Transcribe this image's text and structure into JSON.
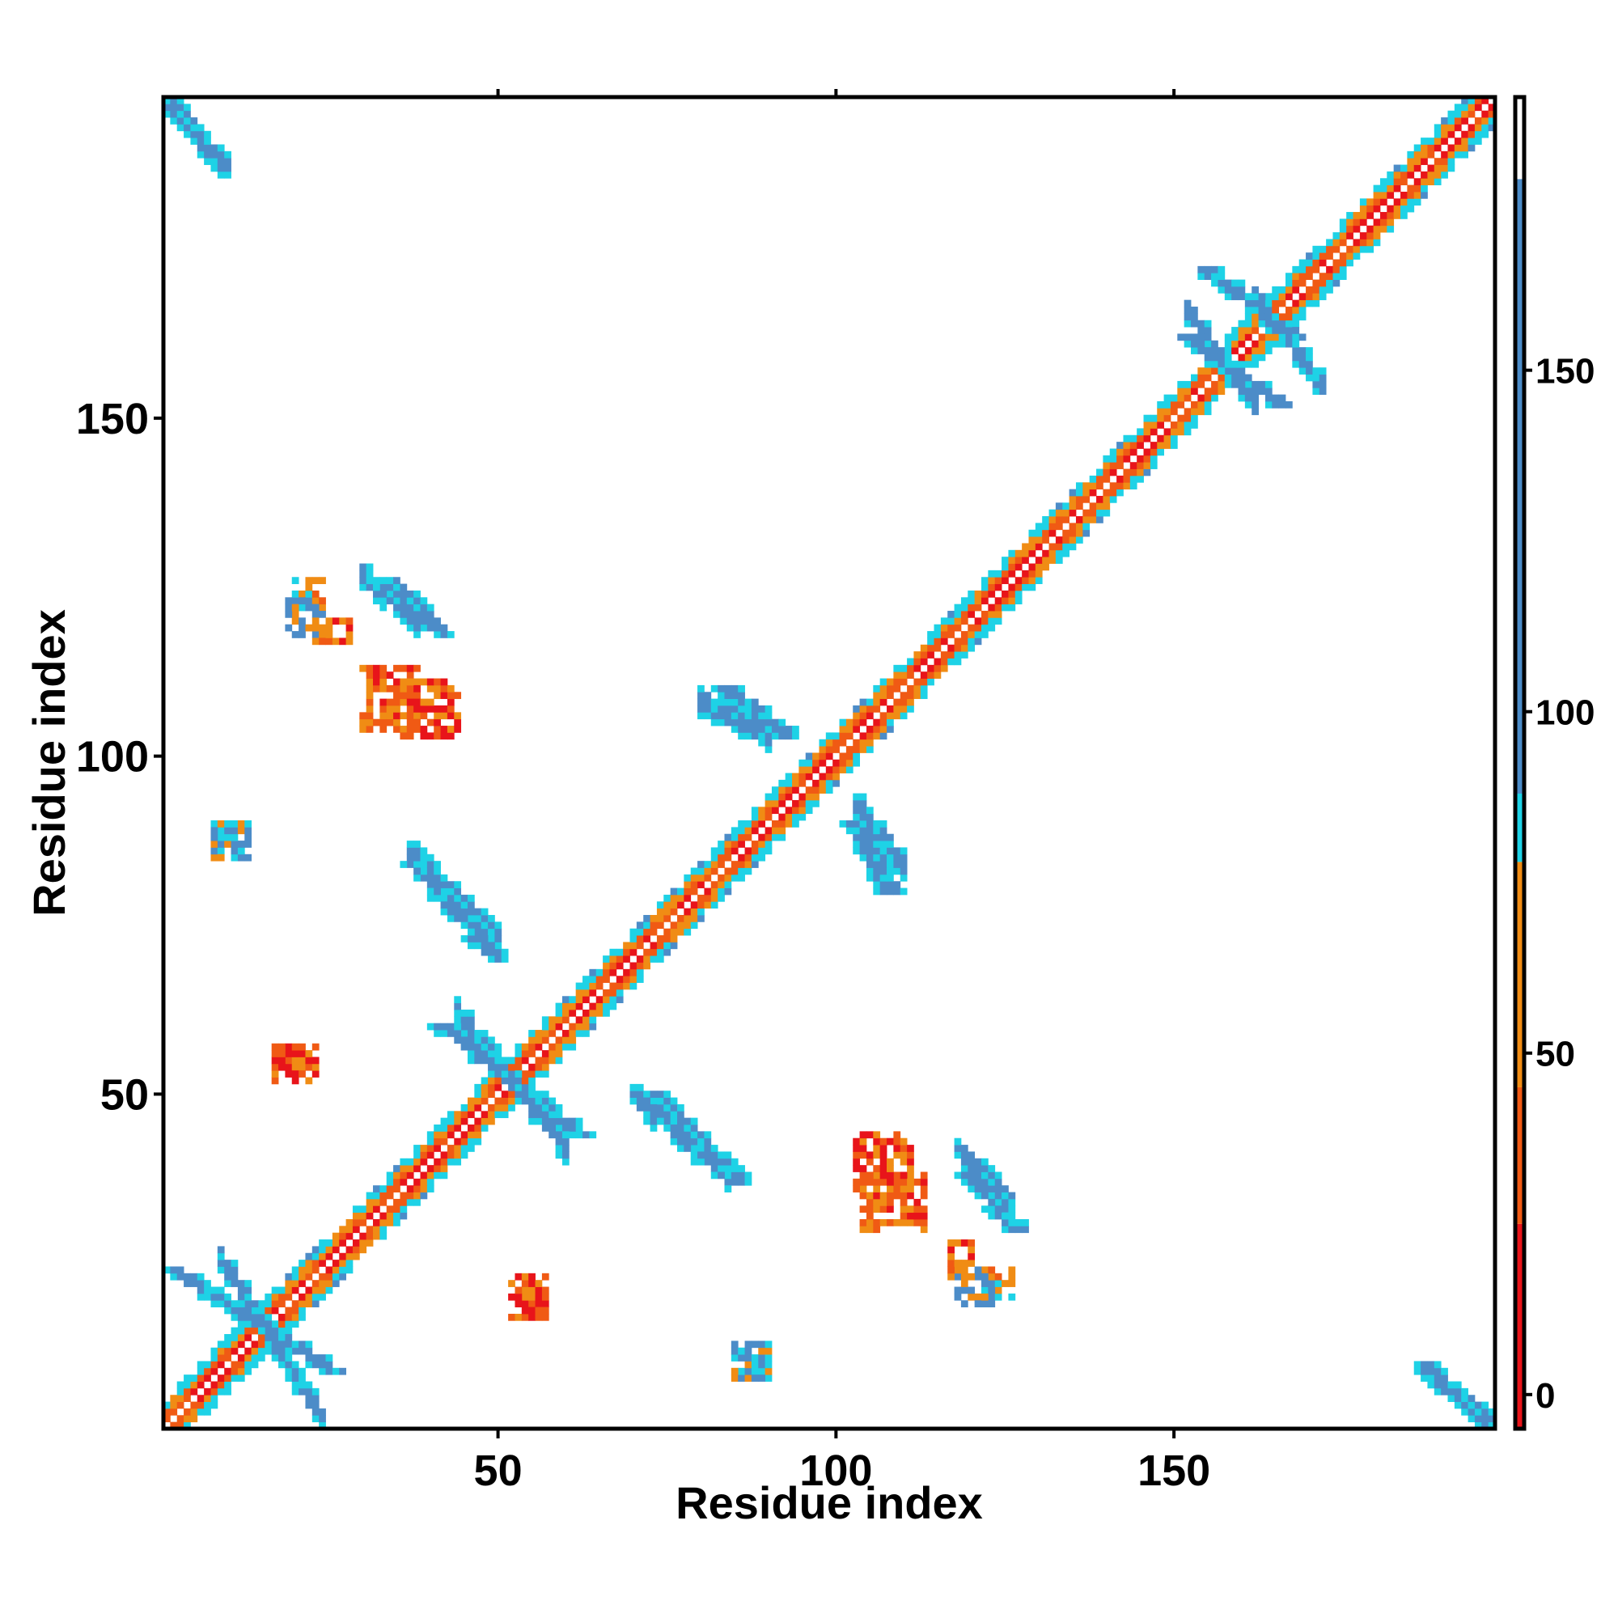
{
  "chart_data": {
    "type": "heatmap",
    "title": "",
    "xlabel": "Residue index",
    "ylabel": "Residue index",
    "xlim": [
      1,
      197
    ],
    "ylim": [
      1,
      197
    ],
    "x_ticks": [
      {
        "value": 50,
        "label": "50"
      },
      {
        "value": 100,
        "label": "100"
      },
      {
        "value": 150,
        "label": "150"
      }
    ],
    "y_ticks": [
      {
        "value": 50,
        "label": "50"
      },
      {
        "value": 100,
        "label": "100"
      },
      {
        "value": 150,
        "label": "150"
      }
    ],
    "colorbar": {
      "range": [
        -5,
        190
      ],
      "ticks": [
        {
          "value": 0,
          "label": "0"
        },
        {
          "value": 50,
          "label": "50"
        },
        {
          "value": 100,
          "label": "100"
        },
        {
          "value": 150,
          "label": "150"
        }
      ],
      "bins": [
        {
          "from": -5,
          "to": 25,
          "color": "#e8141a"
        },
        {
          "from": 25,
          "to": 45,
          "color": "#f05a14"
        },
        {
          "from": 45,
          "to": 78,
          "color": "#f08c14"
        },
        {
          "from": 78,
          "to": 88,
          "color": "#1ed2e6"
        },
        {
          "from": 88,
          "to": 178,
          "color": "#4c8cc8"
        },
        {
          "from": 178,
          "to": 190,
          "color": "#ffffff"
        }
      ]
    },
    "symmetric": true,
    "diagonal": {
      "start": 1,
      "end": 197
    },
    "regions": [
      {
        "i": [
          1,
          10
        ],
        "j": [
          187,
          197
        ],
        "kind": "antiparallel",
        "value": 120
      },
      {
        "i": [
          9,
          24
        ],
        "j": [
          2,
          26
        ],
        "kind": "antiparallel",
        "value": 110
      },
      {
        "i": [
          44,
          60
        ],
        "j": [
          42,
          62
        ],
        "kind": "antiparallel",
        "value": 110
      },
      {
        "i": [
          37,
          50
        ],
        "j": [
          73,
          86
        ],
        "kind": "antiparallel",
        "value": 115
      },
      {
        "i": [
          70,
          84
        ],
        "j": [
          38,
          50
        ],
        "kind": "antiparallel",
        "value": 115
      },
      {
        "i": [
          80,
          90
        ],
        "j": [
          103,
          108
        ],
        "kind": "antiparallel",
        "value": 115
      },
      {
        "i": [
          103,
          110
        ],
        "j": [
          84,
          93
        ],
        "kind": "antiparallel",
        "value": 115
      },
      {
        "i": [
          118,
          126
        ],
        "j": [
          34,
          42
        ],
        "kind": "antiparallel",
        "value": 115
      },
      {
        "i": [
          30,
          38
        ],
        "j": [
          120,
          127
        ],
        "kind": "antiparallel",
        "value": 115
      },
      {
        "i": [
          162,
          172
        ],
        "j": [
          155,
          168
        ],
        "kind": "antiparallel",
        "value": 115
      },
      {
        "i": [
          152,
          162
        ],
        "j": [
          152,
          166
        ],
        "kind": "antiparallel",
        "value": 115
      },
      {
        "i": [
          30,
          38
        ],
        "j": [
          104,
          113
        ],
        "kind": "patch",
        "value": 35
      },
      {
        "i": [
          103,
          111
        ],
        "j": [
          36,
          44
        ],
        "kind": "patch",
        "value": 35
      },
      {
        "i": [
          19,
          23
        ],
        "j": [
          52,
          57
        ],
        "kind": "patch",
        "value": 40
      },
      {
        "i": [
          52,
          57
        ],
        "j": [
          17,
          22
        ],
        "kind": "patch",
        "value": 40
      },
      {
        "i": [
          20,
          24
        ],
        "j": [
          121,
          126
        ],
        "kind": "patch",
        "value": 65
      },
      {
        "i": [
          118,
          123
        ],
        "j": [
          19,
          24
        ],
        "kind": "patch",
        "value": 95
      },
      {
        "i": [
          85,
          90
        ],
        "j": [
          8,
          12
        ],
        "kind": "patch",
        "value": 85
      },
      {
        "i": [
          8,
          13
        ],
        "j": [
          85,
          90
        ],
        "kind": "patch",
        "value": 85
      },
      {
        "i": [
          23,
          28
        ],
        "j": [
          117,
          120
        ],
        "kind": "patch",
        "value": 40
      }
    ],
    "legend": "none",
    "grid": false
  }
}
